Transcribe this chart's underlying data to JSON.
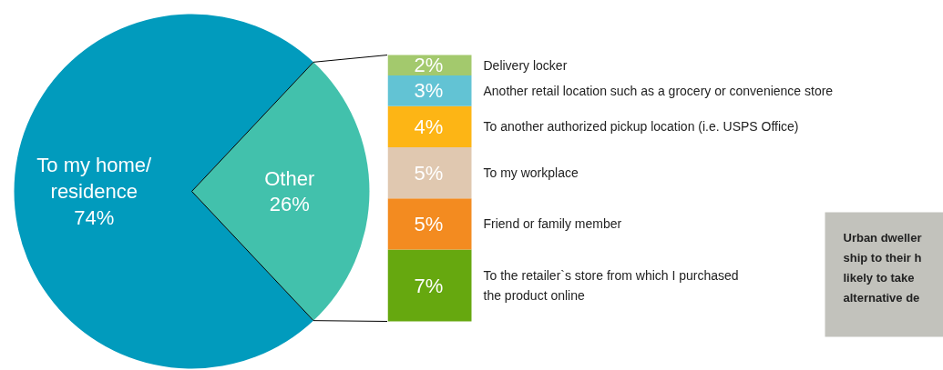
{
  "chart_data": [
    {
      "type": "pie",
      "categories": [
        "To my home/\nresidence",
        "Other"
      ],
      "values": [
        74,
        26
      ],
      "colors": [
        "#019bbd",
        "#42c1ac"
      ],
      "value_labels": [
        "74%",
        "26%"
      ]
    },
    {
      "type": "bar",
      "stacked": true,
      "categories": [
        null
      ],
      "annotations": [
        "Urban dweller",
        "ship to their h",
        "likely to take",
        "alternative de"
      ],
      "series": [
        {
          "name": "To the retailer`s store from which I purchased\nthe product online",
          "color": "#66a80f",
          "values": [
            7
          ],
          "value_labels": [
            "7%"
          ]
        },
        {
          "name": "Friend or family member",
          "color": "#f38b20",
          "values": [
            5
          ],
          "value_labels": [
            "5%"
          ]
        },
        {
          "name": "To my workplace",
          "color": "#e0c8b0",
          "values": [
            5
          ],
          "value_labels": [
            "5%"
          ]
        },
        {
          "name": "To another authorized pickup location (i.e. USPS Office)",
          "color": "#fdb515",
          "values": [
            4
          ],
          "value_labels": [
            "4%"
          ]
        },
        {
          "name": "Another retail location such as a grocery or convenience store",
          "color": "#62c3d4",
          "values": [
            3
          ],
          "value_labels": [
            "3%"
          ]
        },
        {
          "name": "Delivery locker",
          "color": "#a3c96d",
          "values": [
            2
          ],
          "value_labels": [
            "2%"
          ]
        }
      ]
    }
  ]
}
